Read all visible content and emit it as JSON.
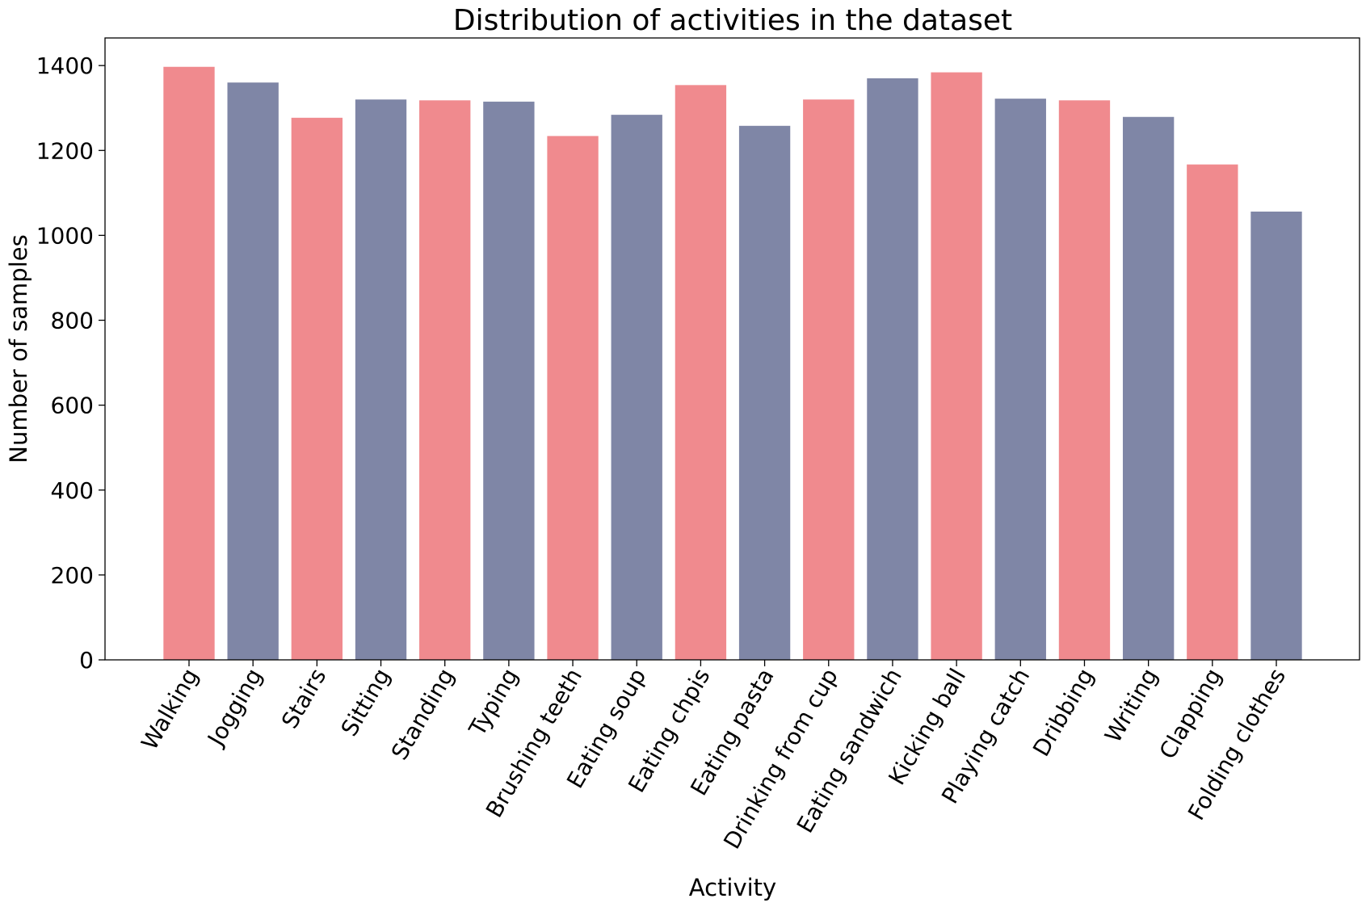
{
  "chart_data": {
    "type": "bar",
    "title": "Distribution of activities in the dataset",
    "xlabel": "Activity",
    "ylabel": "Number of samples",
    "ylim": [
      0,
      1465
    ],
    "yticks": [
      0,
      200,
      400,
      600,
      800,
      1000,
      1200,
      1400
    ],
    "grid": false,
    "colors": [
      "#f08a8e",
      "#7f86a6"
    ],
    "categories": [
      "Walking",
      "Jogging",
      "Stairs",
      "Sitting",
      "Standing",
      "Typing",
      "Brushing teeth",
      "Eating soup",
      "Eating chpis",
      "Eating pasta",
      "Drinking from cup",
      "Eating sandwich",
      "Kicking ball",
      "Playing catch",
      "Dribbing",
      "Writing",
      "Clapping",
      "Folding clothes"
    ],
    "values": [
      1397,
      1360,
      1277,
      1320,
      1318,
      1315,
      1234,
      1284,
      1354,
      1258,
      1320,
      1370,
      1384,
      1322,
      1318,
      1279,
      1167,
      1056
    ]
  }
}
